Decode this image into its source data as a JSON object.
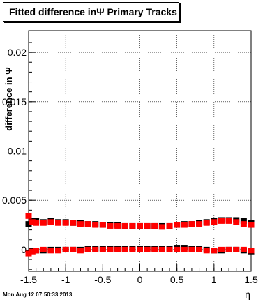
{
  "chart_data": {
    "type": "scatter",
    "title": "Fitted difference inΨ   Primary Tracks",
    "xlabel": "η",
    "ylabel": "difference in Ψ",
    "xlim": [
      -1.5,
      1.5
    ],
    "ylim": [
      -0.0022,
      0.0222
    ],
    "x_ticks": [
      "-1.5",
      "-1",
      "-0.5",
      "0",
      "0.5",
      "1",
      "1.5"
    ],
    "y_ticks": [
      "0",
      "0.005",
      "0.01",
      "0.015",
      "0.02"
    ],
    "grid": true,
    "series": [
      {
        "color": "#000000",
        "points": [
          [
            -1.5,
            0.0026
          ],
          [
            -1.45,
            0.0029
          ],
          [
            -1.4,
            0.0029
          ],
          [
            -1.3,
            0.0028
          ],
          [
            -1.2,
            0.0029
          ],
          [
            -1.1,
            0.0028
          ],
          [
            -1.0,
            0.0028
          ],
          [
            -0.9,
            0.0027
          ],
          [
            -0.8,
            0.0027
          ],
          [
            -0.7,
            0.0026
          ],
          [
            -0.6,
            0.0026
          ],
          [
            -0.5,
            0.0025
          ],
          [
            -0.4,
            0.0025
          ],
          [
            -0.3,
            0.0025
          ],
          [
            -0.2,
            0.0024
          ],
          [
            -0.1,
            0.0024
          ],
          [
            0.0,
            0.0024
          ],
          [
            0.1,
            0.0024
          ],
          [
            0.2,
            0.0024
          ],
          [
            0.3,
            0.0024
          ],
          [
            0.4,
            0.0024
          ],
          [
            0.5,
            0.0025
          ],
          [
            0.6,
            0.0026
          ],
          [
            0.7,
            0.0026
          ],
          [
            0.8,
            0.0027
          ],
          [
            0.9,
            0.0028
          ],
          [
            1.0,
            0.0029
          ],
          [
            1.1,
            0.003
          ],
          [
            1.2,
            0.003
          ],
          [
            1.3,
            0.003
          ],
          [
            1.4,
            0.0029
          ],
          [
            1.5,
            0.0027
          ],
          [
            -1.5,
            -0.0003
          ],
          [
            -1.45,
            -0.0001
          ],
          [
            -1.4,
            -0.0001
          ],
          [
            -1.3,
            -0.0001
          ],
          [
            -1.2,
            0.0
          ],
          [
            -1.1,
            0.0
          ],
          [
            -1.0,
            0.0
          ],
          [
            -0.9,
            0.0
          ],
          [
            -0.8,
            0.0
          ],
          [
            -0.7,
            0.0001
          ],
          [
            -0.6,
            0.0001
          ],
          [
            -0.5,
            0.0001
          ],
          [
            -0.4,
            0.0001
          ],
          [
            -0.3,
            0.0001
          ],
          [
            -0.2,
            0.0001
          ],
          [
            -0.1,
            0.0001
          ],
          [
            0.0,
            0.0001
          ],
          [
            0.1,
            0.0001
          ],
          [
            0.2,
            0.0001
          ],
          [
            0.3,
            0.0001
          ],
          [
            0.4,
            0.0001
          ],
          [
            0.5,
            0.0002
          ],
          [
            0.6,
            0.0002
          ],
          [
            0.7,
            0.0001
          ],
          [
            0.8,
            0.0001
          ],
          [
            0.9,
            0.0
          ],
          [
            1.0,
            -0.0001
          ],
          [
            1.1,
            -0.0001
          ],
          [
            1.2,
            0.0
          ],
          [
            1.3,
            0.0
          ],
          [
            1.4,
            -0.0001
          ],
          [
            1.5,
            -0.0002
          ]
        ]
      },
      {
        "color": "#ff0000",
        "points": [
          [
            -1.5,
            0.0034
          ],
          [
            -1.45,
            0.0028
          ],
          [
            -1.4,
            0.0027
          ],
          [
            -1.3,
            0.0027
          ],
          [
            -1.2,
            0.0028
          ],
          [
            -1.1,
            0.0027
          ],
          [
            -1.0,
            0.0027
          ],
          [
            -0.9,
            0.0027
          ],
          [
            -0.8,
            0.0026
          ],
          [
            -0.7,
            0.0026
          ],
          [
            -0.6,
            0.0025
          ],
          [
            -0.5,
            0.0025
          ],
          [
            -0.4,
            0.0024
          ],
          [
            -0.3,
            0.0024
          ],
          [
            -0.2,
            0.0024
          ],
          [
            -0.1,
            0.0024
          ],
          [
            0.0,
            0.0024
          ],
          [
            0.1,
            0.0024
          ],
          [
            0.2,
            0.0024
          ],
          [
            0.3,
            0.0023
          ],
          [
            0.4,
            0.0024
          ],
          [
            0.5,
            0.0025
          ],
          [
            0.6,
            0.0025
          ],
          [
            0.7,
            0.0026
          ],
          [
            0.8,
            0.0026
          ],
          [
            0.9,
            0.0027
          ],
          [
            1.0,
            0.0028
          ],
          [
            1.1,
            0.0029
          ],
          [
            1.2,
            0.0029
          ],
          [
            1.3,
            0.0028
          ],
          [
            1.4,
            0.0026
          ],
          [
            1.5,
            0.0025
          ],
          [
            -1.5,
            -0.0004
          ],
          [
            -1.45,
            -0.0002
          ],
          [
            -1.4,
            -0.0001
          ],
          [
            -1.3,
            0.0
          ],
          [
            -1.2,
            -0.0001
          ],
          [
            -1.1,
            -0.0001
          ],
          [
            -1.0,
            0.0
          ],
          [
            -0.9,
            0.0
          ],
          [
            -0.8,
            -0.0001
          ],
          [
            -0.7,
            0.0
          ],
          [
            -0.6,
            0.0
          ],
          [
            -0.5,
            0.0
          ],
          [
            -0.4,
            0.0
          ],
          [
            -0.3,
            0.0
          ],
          [
            -0.2,
            0.0
          ],
          [
            -0.1,
            0.0
          ],
          [
            0.0,
            0.0
          ],
          [
            0.1,
            0.0
          ],
          [
            0.2,
            0.0
          ],
          [
            0.3,
            0.0
          ],
          [
            0.4,
            0.0
          ],
          [
            0.5,
            0.0
          ],
          [
            0.6,
            0.0
          ],
          [
            0.7,
            0.0
          ],
          [
            0.8,
            0.0
          ],
          [
            0.9,
            -0.0001
          ],
          [
            1.0,
            -0.0001
          ],
          [
            1.1,
            0.0
          ],
          [
            1.2,
            0.0
          ],
          [
            1.3,
            0.0
          ],
          [
            1.4,
            0.0
          ],
          [
            1.5,
            -0.0001
          ]
        ]
      }
    ]
  },
  "footer": {
    "timestamp": "Mon Aug 12 07:50:33 2013"
  }
}
